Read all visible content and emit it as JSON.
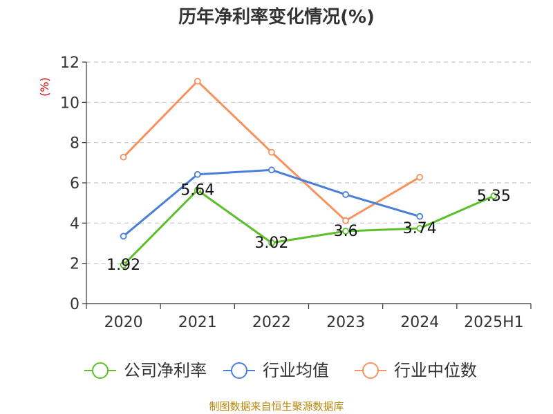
{
  "chart_data": {
    "type": "line",
    "title": "历年净利率变化情况(%)",
    "ylabel": "(%)",
    "xlabel": "",
    "categories": [
      "2020",
      "2021",
      "2022",
      "2023",
      "2024",
      "2025H1"
    ],
    "ylim": [
      0,
      12
    ],
    "yticks": [
      0,
      2,
      4,
      6,
      8,
      10,
      12
    ],
    "grid": true,
    "legend_position": "bottom",
    "series": [
      {
        "name": "公司净利率",
        "color": "#5cbf2a",
        "values": [
          1.92,
          5.64,
          3.02,
          3.6,
          3.74,
          5.35
        ],
        "labels": [
          "1.92",
          "5.64",
          "3.02",
          "3.6",
          "3.74",
          "5.35"
        ]
      },
      {
        "name": "行业均值",
        "color": "#4a7fd8",
        "values": [
          3.35,
          6.42,
          6.64,
          5.42,
          4.33,
          null
        ]
      },
      {
        "name": "行业中位数",
        "color": "#f6925c",
        "values": [
          7.28,
          11.05,
          7.52,
          4.12,
          6.28,
          null
        ]
      }
    ],
    "source": "制图数据来自恒生聚源数据库"
  }
}
